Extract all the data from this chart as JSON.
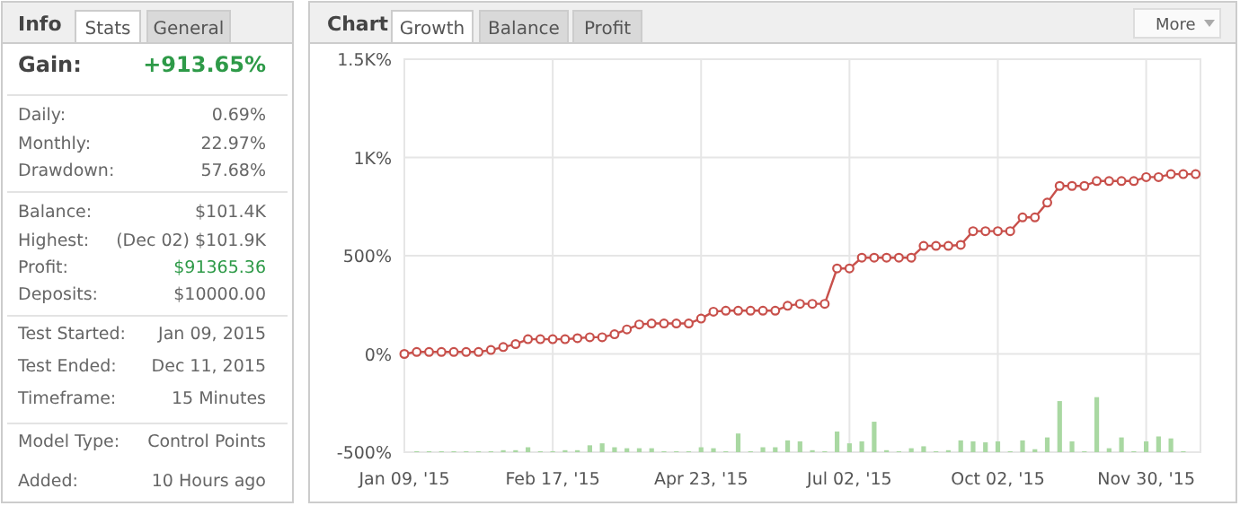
{
  "chart_data": [
    {
      "type": "other",
      "title": "Info",
      "annotations": [
        "Stats",
        "General",
        "Gain:",
        "+913.65%",
        "Daily:",
        "0.69%",
        "Monthly:",
        "22.97%",
        "Drawdown:",
        "57.68%",
        "Balance:",
        "$101.4K",
        "Highest:",
        "(Dec 02) $101.9K",
        "Profit:",
        "$91365.36",
        "Deposits:",
        "$10000.00",
        "Test Started:",
        "Jan 09, 2015",
        "Test Ended:",
        "Dec 11, 2015",
        "Timeframe:",
        "15 Minutes",
        "Model Type:",
        "Control Points",
        "Added:",
        "10 Hours ago"
      ]
    },
    {
      "type": "line",
      "title": "Chart",
      "annotations": [
        "Growth",
        "Balance",
        "Profit",
        "More"
      ],
      "categories": [
        "Jan 09, '15",
        null,
        null,
        null,
        null,
        null,
        null,
        null,
        null,
        null,
        null,
        null,
        "Feb 17, '15",
        null,
        null,
        null,
        null,
        null,
        null,
        null,
        null,
        null,
        null,
        null,
        "Apr 23, '15",
        null,
        null,
        null,
        null,
        null,
        null,
        null,
        null,
        null,
        null,
        null,
        "Jul 02, '15",
        null,
        null,
        null,
        null,
        null,
        null,
        null,
        null,
        null,
        null,
        null,
        "Oct 02, '15",
        null,
        null,
        null,
        null,
        null,
        null,
        null,
        null,
        null,
        null,
        null,
        "Nov 30, '15",
        null,
        null,
        null,
        null
      ],
      "series": [
        {
          "type": "bar",
          "color": "#a9d8a2",
          "base": [
            null,
            -500,
            -500,
            -500,
            -500,
            -500,
            -500,
            -500,
            -500,
            -500,
            -500,
            -500,
            -500,
            -500,
            -500,
            -500,
            -500,
            -500,
            -500,
            -500,
            -500,
            -500,
            -500,
            -500,
            -500,
            -500,
            -500,
            -500,
            -500,
            -500,
            -500,
            -500,
            -500,
            -500,
            -500,
            -500,
            -500,
            -500,
            -500,
            -500,
            -500,
            -500,
            -500,
            -500,
            -500,
            -500,
            -500,
            -500,
            -500,
            -500,
            -500,
            -500,
            -500,
            -500,
            -500,
            -500,
            -500,
            -500,
            -500,
            -500,
            -500,
            -500,
            -500,
            -500,
            null
          ],
          "values": [
            null,
            5,
            5,
            5,
            5,
            5,
            5,
            5,
            10,
            10,
            25,
            5,
            5,
            10,
            10,
            35,
            45,
            25,
            20,
            20,
            20,
            5,
            5,
            5,
            25,
            20,
            5,
            95,
            5,
            25,
            25,
            60,
            55,
            10,
            5,
            105,
            45,
            55,
            155,
            10,
            5,
            20,
            30,
            5,
            10,
            60,
            55,
            50,
            55,
            5,
            60,
            15,
            75,
            260,
            55,
            5,
            280,
            20,
            75,
            5,
            55,
            80,
            70,
            5,
            null
          ]
        },
        {
          "type": "line",
          "color": "#c8504b",
          "values": [
            0,
            10,
            10,
            10,
            10,
            10,
            10,
            20,
            35,
            50,
            75,
            75,
            75,
            75,
            80,
            85,
            85,
            100,
            125,
            150,
            155,
            155,
            155,
            155,
            180,
            215,
            220,
            220,
            220,
            220,
            220,
            245,
            255,
            255,
            255,
            435,
            435,
            490,
            490,
            490,
            490,
            490,
            550,
            550,
            550,
            555,
            625,
            625,
            625,
            625,
            695,
            695,
            770,
            855,
            855,
            855,
            880,
            880,
            880,
            880,
            900,
            900,
            915,
            915,
            915
          ]
        }
      ],
      "ylim": [
        -500,
        1500
      ],
      "yticks": [
        {
          "value": -500,
          "label": "-500%"
        },
        {
          "value": 0,
          "label": "0%"
        },
        {
          "value": 500,
          "label": "500%"
        },
        {
          "value": 1000,
          "label": "1K%"
        },
        {
          "value": 1500,
          "label": "1.5K%"
        }
      ],
      "grid": true,
      "marker": "circle",
      "line_style": "solid"
    }
  ]
}
